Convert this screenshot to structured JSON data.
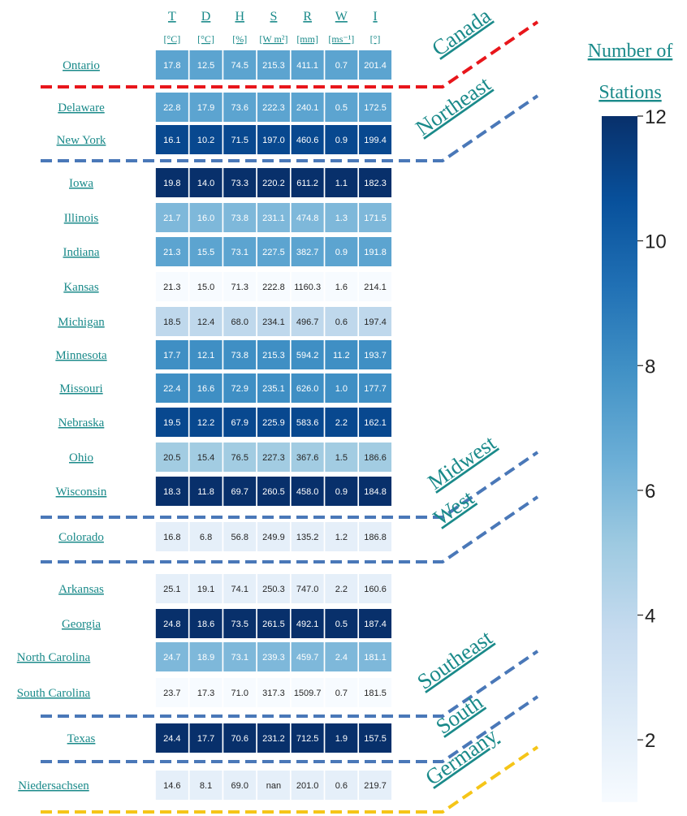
{
  "chart_data": {
    "type": "heatmap",
    "columns": [
      {
        "name": "T",
        "unit": "[°C]"
      },
      {
        "name": "D",
        "unit": "[°C]"
      },
      {
        "name": "H",
        "unit": "[%]"
      },
      {
        "name": "S",
        "unit": "[W m²]"
      },
      {
        "name": "R",
        "unit": "[mm]"
      },
      {
        "name": "W",
        "unit": "[ms⁻¹]"
      },
      {
        "name": "I",
        "unit": "[°]"
      }
    ],
    "rows": [
      {
        "label": "Ontario",
        "region": "Canada",
        "stations": 7,
        "values": [
          "17.8",
          "12.5",
          "74.5",
          "215.3",
          "411.1",
          "0.7",
          "201.4"
        ]
      },
      {
        "label": "Delaware",
        "region": "Northeast",
        "stations": 7,
        "values": [
          "22.8",
          "17.9",
          "73.6",
          "222.3",
          "240.1",
          "0.5",
          "172.5"
        ]
      },
      {
        "label": "New York",
        "region": "Northeast",
        "stations": 11,
        "values": [
          "16.1",
          "10.2",
          "71.5",
          "197.0",
          "460.6",
          "0.9",
          "199.4"
        ]
      },
      {
        "label": "Iowa",
        "region": "Midwest",
        "stations": 12,
        "values": [
          "19.8",
          "14.0",
          "73.3",
          "220.2",
          "611.2",
          "1.1",
          "182.3"
        ]
      },
      {
        "label": "Illinois",
        "region": "Midwest",
        "stations": 6,
        "values": [
          "21.7",
          "16.0",
          "73.8",
          "231.1",
          "474.8",
          "1.3",
          "171.5"
        ]
      },
      {
        "label": "Indiana",
        "region": "Midwest",
        "stations": 7,
        "values": [
          "21.3",
          "15.5",
          "73.1",
          "227.5",
          "382.7",
          "0.9",
          "191.8"
        ]
      },
      {
        "label": "Kansas",
        "region": "Midwest",
        "stations": 1,
        "values": [
          "21.3",
          "15.0",
          "71.3",
          "222.8",
          "1160.3",
          "1.6",
          "214.1"
        ]
      },
      {
        "label": "Michigan",
        "region": "Midwest",
        "stations": 4,
        "values": [
          "18.5",
          "12.4",
          "68.0",
          "234.1",
          "496.7",
          "0.6",
          "197.4"
        ]
      },
      {
        "label": "Minnesota",
        "region": "Midwest",
        "stations": 8,
        "values": [
          "17.7",
          "12.1",
          "73.8",
          "215.3",
          "594.2",
          "11.2",
          "193.7"
        ]
      },
      {
        "label": "Missouri",
        "region": "Midwest",
        "stations": 8,
        "values": [
          "22.4",
          "16.6",
          "72.9",
          "235.1",
          "626.0",
          "1.0",
          "177.7"
        ]
      },
      {
        "label": "Nebraska",
        "region": "Midwest",
        "stations": 11,
        "values": [
          "19.5",
          "12.2",
          "67.9",
          "225.9",
          "583.6",
          "2.2",
          "162.1"
        ]
      },
      {
        "label": "Ohio",
        "region": "Midwest",
        "stations": 5,
        "values": [
          "20.5",
          "15.4",
          "76.5",
          "227.3",
          "367.6",
          "1.5",
          "186.6"
        ]
      },
      {
        "label": "Wisconsin",
        "region": "Midwest",
        "stations": 12,
        "values": [
          "18.3",
          "11.8",
          "69.7",
          "260.5",
          "458.0",
          "0.9",
          "184.8"
        ]
      },
      {
        "label": "Colorado",
        "region": "West",
        "stations": 2,
        "values": [
          "16.8",
          "6.8",
          "56.8",
          "249.9",
          "135.2",
          "1.2",
          "186.8"
        ]
      },
      {
        "label": "Arkansas",
        "region": "Southeast",
        "stations": 2,
        "values": [
          "25.1",
          "19.1",
          "74.1",
          "250.3",
          "747.0",
          "2.2",
          "160.6"
        ]
      },
      {
        "label": "Georgia",
        "region": "Southeast",
        "stations": 12,
        "values": [
          "24.8",
          "18.6",
          "73.5",
          "261.5",
          "492.1",
          "0.5",
          "187.4"
        ]
      },
      {
        "label": "North Carolina",
        "region": "Southeast",
        "stations": 6,
        "values": [
          "24.7",
          "18.9",
          "73.1",
          "239.3",
          "459.7",
          "2.4",
          "181.1"
        ]
      },
      {
        "label": "South Carolina",
        "region": "Southeast",
        "stations": 1,
        "values": [
          "23.7",
          "17.3",
          "71.0",
          "317.3",
          "1509.7",
          "0.7",
          "181.5"
        ]
      },
      {
        "label": "Texas",
        "region": "South",
        "stations": 12,
        "values": [
          "24.4",
          "17.7",
          "70.6",
          "231.2",
          "712.5",
          "1.9",
          "157.5"
        ]
      },
      {
        "label": "Niedersachsen",
        "region": "Germany",
        "stations": 2,
        "values": [
          "14.6",
          "8.1",
          "69.0",
          "nan",
          "201.0",
          "0.6",
          "219.7"
        ]
      }
    ],
    "groups": [
      {
        "name": "Canada",
        "color": "#e8161b"
      },
      {
        "name": "Northeast",
        "color": "#4a78b8"
      },
      {
        "name": "Midwest",
        "color": "#4a78b8"
      },
      {
        "name": "West",
        "color": "#4a78b8"
      },
      {
        "name": "Southeast",
        "color": "#4a78b8"
      },
      {
        "name": "South",
        "color": "#4a78b8"
      },
      {
        "name": "Germany",
        "color": "#f5c518"
      }
    ],
    "colorbar": {
      "title_line1": "Number of",
      "title_line2": "Stations",
      "range": [
        1,
        12
      ],
      "ticks": [
        2,
        4,
        6,
        8,
        10,
        12
      ],
      "colormap": "Blues"
    }
  }
}
